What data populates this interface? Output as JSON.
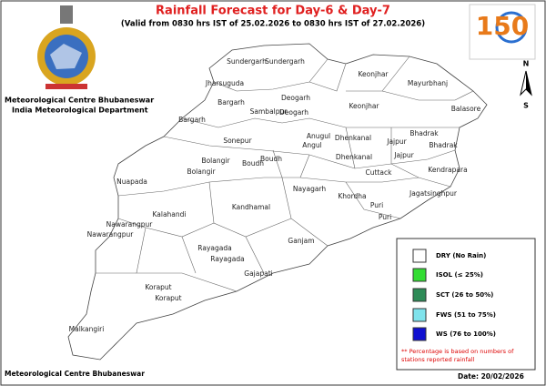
{
  "header": {
    "title": "Rainfall Forecast for Day-6 & Day-7",
    "subtitle": "(Valid from 0830 hrs IST of 25.02.2026 to 0830 hrs IST of 27.02.2026)",
    "org": "Meteorological Centre Bhubaneswar",
    "dept": "India Meteorological Department",
    "logo": "150"
  },
  "compass": {
    "north": "N",
    "south": "S"
  },
  "districts": [
    "Sundergarh",
    "Sundergarh",
    "Jharsuguda",
    "Keonjhar",
    "Mayurbhanj",
    "Keonjhar",
    "Balasore",
    "Bargarh",
    "Sambalpur",
    "Deogarh",
    "Deogarh",
    "Bargarh",
    "Bhadrak",
    "Bhadrak",
    "Sonepur",
    "Anugul",
    "Angul",
    "Dhenkanal",
    "Jajpur",
    "Jajpur",
    "Bolangir",
    "Bolangir",
    "Boudh",
    "Boudh",
    "Dhenkanal",
    "Cuttack",
    "Kendrapara",
    "Nuapada",
    "Nayagarh",
    "Jagatsinghpur",
    "Khordha",
    "Puri",
    "Puri",
    "Kandhamal",
    "Kalahandi",
    "Nawarangpur",
    "Nawarangpur",
    "Ganjam",
    "Rayagada",
    "Rayagada",
    "Gajapati",
    "Koraput",
    "Koraput",
    "Malkangiri"
  ],
  "legend": {
    "items": [
      "DRY (No Rain)",
      "ISOL (≤ 25%)",
      "SCT (26 to 50%)",
      "FWS (51 to 75%)",
      "WS (76 to 100%)"
    ],
    "note": [
      "** Percentage is based on numbers of",
      "stations reported rainfall"
    ]
  },
  "footer": {
    "org": "Meteorological Centre Bhubaneswar",
    "date": "Date: 20/02/2026"
  }
}
